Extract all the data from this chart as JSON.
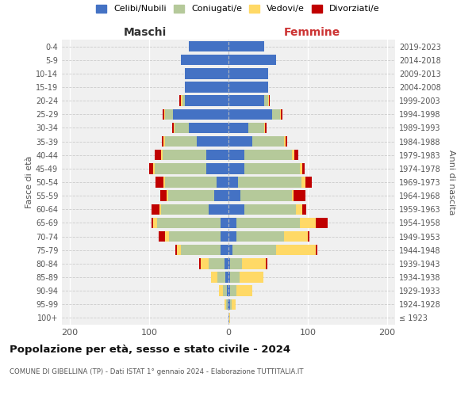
{
  "age_groups": [
    "100+",
    "95-99",
    "90-94",
    "85-89",
    "80-84",
    "75-79",
    "70-74",
    "65-69",
    "60-64",
    "55-59",
    "50-54",
    "45-49",
    "40-44",
    "35-39",
    "30-34",
    "25-29",
    "20-24",
    "15-19",
    "10-14",
    "5-9",
    "0-4"
  ],
  "birth_years": [
    "≤ 1923",
    "1924-1928",
    "1929-1933",
    "1934-1938",
    "1939-1943",
    "1944-1948",
    "1949-1953",
    "1954-1958",
    "1959-1963",
    "1964-1968",
    "1969-1973",
    "1974-1978",
    "1979-1983",
    "1984-1988",
    "1989-1993",
    "1994-1998",
    "1999-2003",
    "2004-2008",
    "2009-2013",
    "2014-2018",
    "2019-2023"
  ],
  "maschi": {
    "celibi": [
      0,
      1,
      2,
      4,
      5,
      10,
      10,
      10,
      25,
      18,
      15,
      28,
      28,
      40,
      50,
      70,
      55,
      55,
      55,
      60,
      50
    ],
    "coniugati": [
      0,
      2,
      5,
      10,
      20,
      50,
      65,
      80,
      60,
      58,
      65,
      65,
      55,
      40,
      18,
      10,
      3,
      0,
      0,
      0,
      0
    ],
    "vedovi": [
      0,
      2,
      5,
      8,
      10,
      5,
      5,
      5,
      2,
      2,
      2,
      2,
      2,
      2,
      1,
      1,
      2,
      0,
      0,
      0,
      0
    ],
    "divorziati": [
      0,
      0,
      0,
      0,
      2,
      2,
      8,
      2,
      10,
      8,
      10,
      5,
      8,
      2,
      2,
      2,
      2,
      0,
      0,
      0,
      0
    ]
  },
  "femmine": {
    "nubili": [
      1,
      2,
      2,
      2,
      2,
      5,
      10,
      10,
      20,
      15,
      12,
      20,
      20,
      30,
      25,
      55,
      45,
      50,
      50,
      60,
      45
    ],
    "coniugate": [
      0,
      2,
      8,
      12,
      15,
      55,
      60,
      80,
      65,
      65,
      80,
      70,
      60,
      40,
      20,
      10,
      5,
      0,
      0,
      0,
      0
    ],
    "vedove": [
      1,
      5,
      20,
      30,
      30,
      50,
      30,
      20,
      8,
      2,
      5,
      3,
      3,
      2,
      1,
      1,
      1,
      0,
      0,
      0,
      0
    ],
    "divorziate": [
      0,
      0,
      0,
      0,
      2,
      2,
      2,
      15,
      5,
      15,
      8,
      3,
      5,
      2,
      2,
      2,
      1,
      0,
      0,
      0,
      0
    ]
  },
  "colors": {
    "celibi": "#4472C4",
    "coniugati": "#B5C99A",
    "vedovi": "#FFD966",
    "divorziati": "#C00000"
  },
  "title": "Popolazione per età, sesso e stato civile - 2024",
  "subtitle": "COMUNE DI GIBELLINA (TP) - Dati ISTAT 1° gennaio 2024 - Elaborazione TUTTITALIA.IT",
  "xlabel_left": "Maschi",
  "xlabel_right": "Femmine",
  "ylabel_left": "Fasce di età",
  "ylabel_right": "Anni di nascita",
  "xlim": 210,
  "legend_labels": [
    "Celibi/Nubili",
    "Coniugati/e",
    "Vedovi/e",
    "Divorziati/e"
  ],
  "bg_color": "#f0f0f0"
}
